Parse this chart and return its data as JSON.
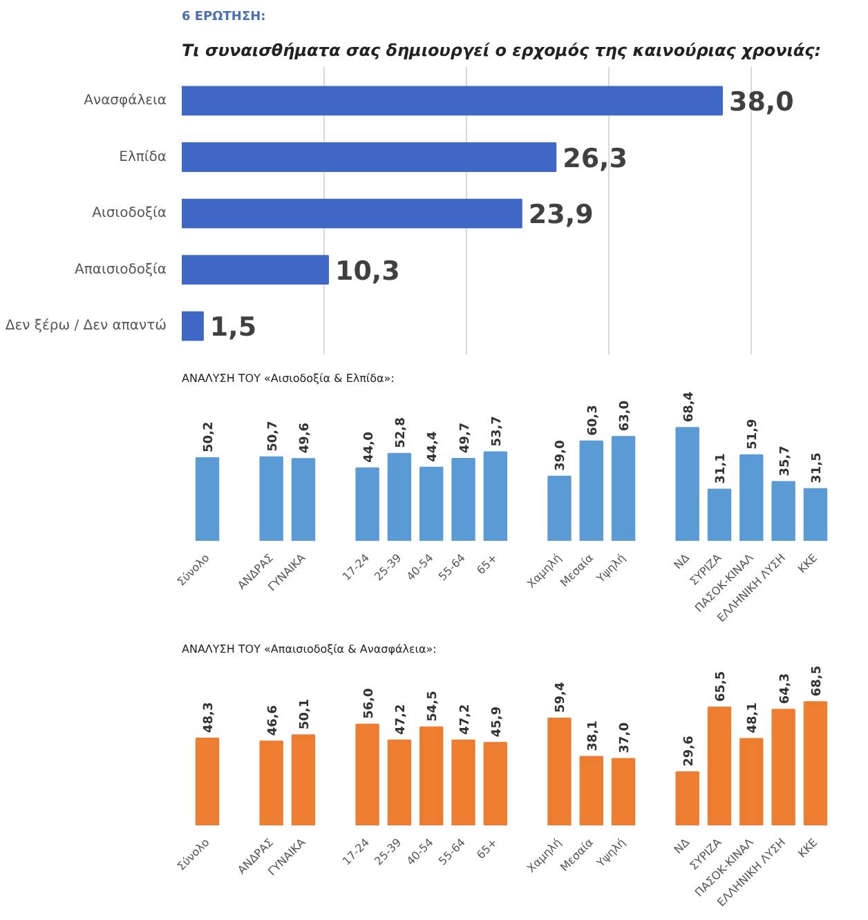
{
  "chart_data": [
    {
      "type": "bar",
      "orientation": "horizontal",
      "subtitle": "6 ΕΡΩΤΗΣΗ:",
      "title": "Τι συναισθήματα σας δημιουργεί ο ερχομός της καινούριας χρονιάς:",
      "categories": [
        "Ανασφάλεια",
        "Ελπίδα",
        "Αισιοδοξία",
        "Απαισιοδοξία",
        "Δεν ξέρω / Δεν απαντώ"
      ],
      "values": [
        38.0,
        26.3,
        23.9,
        10.3,
        1.5
      ],
      "color": "#3f67c6",
      "value_labels": [
        "38,0",
        "26,3",
        "23,9",
        "10,3",
        "1,5"
      ],
      "grid": "x",
      "tick_labels": "y"
    },
    {
      "type": "bar",
      "title": "ΑΝΑΛΥΣΗ ΤΟΥ «Αισιοδοξία & Ελπίδα»:",
      "categories": [
        "Σύνολο",
        null,
        "ΑΝΔΡΑΣ",
        "ΓΥΝΑΙΚΑ",
        null,
        "17-24",
        "25-39",
        "40-54",
        "55-64",
        "65+",
        null,
        "Χαμηλή",
        "Μεσαία",
        "Υψηλή",
        null,
        "ΝΔ",
        "ΣΥΡΙΖΑ",
        "ΠΑΣΟΚ-ΚΙΝΑΛ",
        "ΕΛΛΗΝΙΚΗ ΛΥΣΗ",
        "ΚΚΕ"
      ],
      "values": [
        50.2,
        null,
        50.7,
        49.6,
        null,
        44.0,
        52.8,
        44.4,
        49.7,
        53.7,
        null,
        39.0,
        60.3,
        63.0,
        null,
        68.4,
        31.1,
        51.9,
        35.7,
        31.5
      ],
      "value_labels": [
        "50,2",
        null,
        "50,7",
        "49,6",
        null,
        "44,0",
        "52,8",
        "44,4",
        "49,7",
        "53,7",
        null,
        "39,0",
        "60,3",
        "63,0",
        null,
        "68,4",
        "31,1",
        "51,9",
        "35,7",
        "31,5"
      ],
      "color": "#5b9bd5",
      "tick_labels": "x",
      "grid": false
    },
    {
      "type": "bar",
      "title": "ΑΝΑΛΥΣΗ ΤΟΥ «Απαισιοδοξία & Ανασφάλεια»:",
      "categories": [
        "Σύνολο",
        null,
        "ΑΝΔΡΑΣ",
        "ΓΥΝΑΙΚΑ",
        null,
        "17-24",
        "25-39",
        "40-54",
        "55-64",
        "65+",
        null,
        "Χαμηλή",
        "Μεσαία",
        "Υψηλή",
        null,
        "ΝΔ",
        "ΣΥΡΙΖΑ",
        "ΠΑΣΟΚ-ΚΙΝΑΛ",
        "ΕΛΛΗΝΙΚΗ ΛΥΣΗ",
        "ΚΚΕ"
      ],
      "values": [
        48.3,
        null,
        46.6,
        50.1,
        null,
        56.0,
        47.2,
        54.5,
        47.2,
        45.9,
        null,
        59.4,
        38.1,
        37.0,
        null,
        29.6,
        65.5,
        48.1,
        64.3,
        68.5
      ],
      "value_labels": [
        "48,3",
        null,
        "46,6",
        "50,1",
        null,
        "56,0",
        "47,2",
        "54,5",
        "47,2",
        "45,9",
        null,
        "59,4",
        "38,1",
        "37,0",
        null,
        "29,6",
        "65,5",
        "48,1",
        "64,3",
        "68,5"
      ],
      "color": "#ed7d31",
      "tick_labels": "x",
      "grid": false
    }
  ]
}
